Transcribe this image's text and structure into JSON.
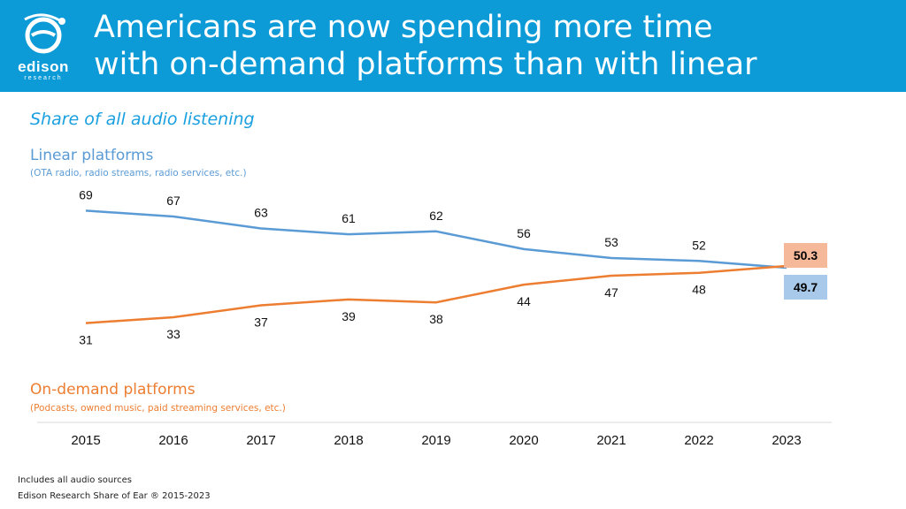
{
  "header": {
    "brand": "edison",
    "brand_sub": "research",
    "title_line1": "Americans are now spending more time",
    "title_line2": "with on-demand platforms than with linear",
    "bg_color": "#0d9bd8"
  },
  "subtitle": "Share of all audio listening",
  "linear": {
    "label": "Linear platforms",
    "note": "(OTA radio, radio streams, radio services, etc.)",
    "color": "#5b9bd5"
  },
  "ondemand": {
    "label": "On-demand platforms",
    "note": "(Podcasts, owned music, paid streaming services, etc.)",
    "color": "#ed7d31"
  },
  "chart_data": {
    "type": "line",
    "categories": [
      "2015",
      "2016",
      "2017",
      "2018",
      "2019",
      "2020",
      "2021",
      "2022",
      "2023"
    ],
    "series": [
      {
        "name": "Linear platforms",
        "values": [
          69,
          67,
          63,
          61,
          62,
          56,
          53,
          52,
          49.7
        ],
        "labels": [
          "69",
          "67",
          "63",
          "61",
          "62",
          "56",
          "53",
          "52",
          "49.7"
        ],
        "color": "#5b9bd5",
        "last_label_bg": "#a9c9ea"
      },
      {
        "name": "On-demand platforms",
        "values": [
          31,
          33,
          37,
          39,
          38,
          44,
          47,
          48,
          50.3
        ],
        "labels": [
          "31",
          "33",
          "37",
          "39",
          "38",
          "44",
          "47",
          "48",
          "50.3"
        ],
        "color": "#ed7d31",
        "last_label_bg": "#f5b99a"
      }
    ],
    "grid": false
  },
  "footnotes": {
    "line1": "Includes all audio sources",
    "line2": "Edison Research Share of Ear ® 2015-2023"
  }
}
